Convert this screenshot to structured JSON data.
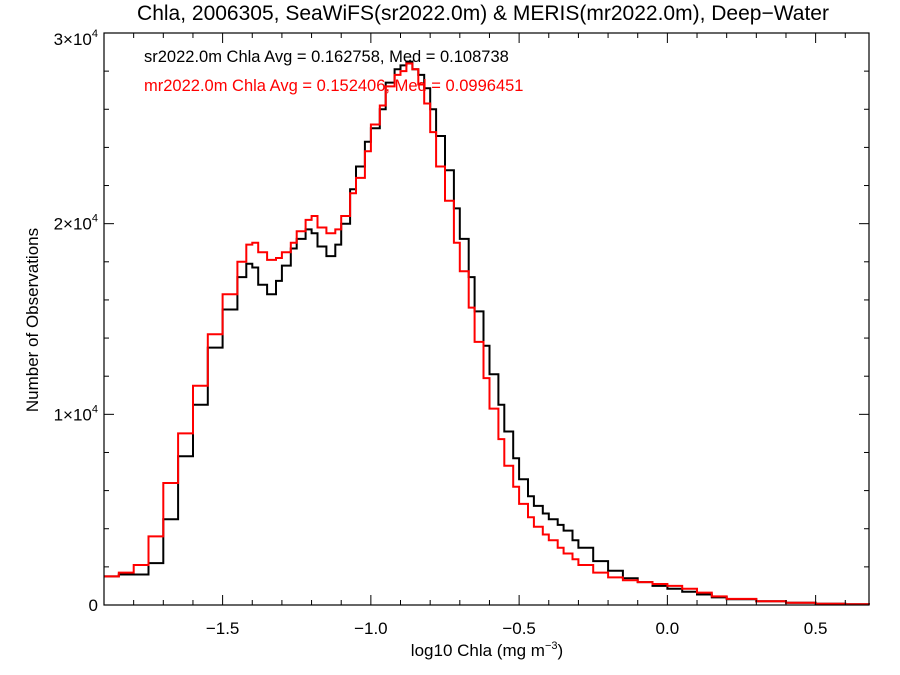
{
  "chart_data": {
    "type": "line",
    "title": "Chla, 2006305, SeaWiFS(sr2022.0m) & MERIS(mr2022.0m), Deep−Water",
    "xlabel": "log10 Chla (mg m⁻³)",
    "ylabel": "Number of Observations",
    "xlim": [
      -1.9,
      0.68
    ],
    "ylim": [
      0,
      30000
    ],
    "x_ticks": [
      -1.5,
      -1.0,
      -0.5,
      0.0,
      0.5
    ],
    "x_tick_labels": [
      "−1.5",
      "−1.0",
      "−0.5",
      "0.0",
      "0.5"
    ],
    "y_ticks": [
      0,
      10000,
      20000,
      30000
    ],
    "y_tick_labels": [
      {
        "mantissa": "0",
        "exponent": ""
      },
      {
        "mantissa": "1×10",
        "exponent": "4"
      },
      {
        "mantissa": "2×10",
        "exponent": "4"
      },
      {
        "mantissa": "3×10",
        "exponent": "4"
      }
    ],
    "annotations": [
      "sr2022.0m Chla Avg = 0.162758, Med = 0.108738",
      "mr2022.0m Chla Avg = 0.152406, Med = 0.0996451"
    ],
    "series": [
      {
        "color": "#000000",
        "x": [
          -1.9,
          -1.85,
          -1.8,
          -1.75,
          -1.7,
          -1.65,
          -1.6,
          -1.55,
          -1.5,
          -1.45,
          -1.42,
          -1.4,
          -1.38,
          -1.35,
          -1.32,
          -1.3,
          -1.27,
          -1.25,
          -1.22,
          -1.2,
          -1.18,
          -1.15,
          -1.12,
          -1.1,
          -1.07,
          -1.05,
          -1.02,
          -1.0,
          -0.97,
          -0.95,
          -0.92,
          -0.9,
          -0.88,
          -0.86,
          -0.84,
          -0.82,
          -0.8,
          -0.78,
          -0.75,
          -0.72,
          -0.7,
          -0.67,
          -0.65,
          -0.62,
          -0.6,
          -0.57,
          -0.55,
          -0.52,
          -0.5,
          -0.47,
          -0.45,
          -0.42,
          -0.4,
          -0.37,
          -0.35,
          -0.32,
          -0.3,
          -0.25,
          -0.2,
          -0.15,
          -0.1,
          -0.05,
          0.0,
          0.05,
          0.1,
          0.15,
          0.2,
          0.3,
          0.4,
          0.5,
          0.6,
          0.68
        ],
        "values": [
          1500,
          1600,
          1600,
          2200,
          4500,
          7800,
          10500,
          13500,
          15500,
          17200,
          17900,
          17700,
          16800,
          16300,
          17000,
          17800,
          18700,
          19200,
          19700,
          19500,
          18800,
          18300,
          18900,
          20000,
          21800,
          23000,
          24300,
          25000,
          26000,
          27400,
          28100,
          28300,
          28500,
          28100,
          27800,
          27100,
          26000,
          24600,
          22800,
          20800,
          19200,
          17200,
          15400,
          13600,
          12100,
          10500,
          9100,
          7700,
          6600,
          5700,
          5200,
          4800,
          4500,
          4200,
          3900,
          3400,
          3000,
          2300,
          1800,
          1400,
          1200,
          1000,
          850,
          700,
          550,
          400,
          300,
          200,
          120,
          70,
          40,
          20
        ]
      },
      {
        "color": "#ff0000",
        "x": [
          -1.9,
          -1.85,
          -1.8,
          -1.75,
          -1.7,
          -1.65,
          -1.6,
          -1.55,
          -1.5,
          -1.45,
          -1.42,
          -1.4,
          -1.38,
          -1.35,
          -1.32,
          -1.3,
          -1.27,
          -1.25,
          -1.22,
          -1.2,
          -1.18,
          -1.15,
          -1.12,
          -1.1,
          -1.07,
          -1.05,
          -1.02,
          -1.0,
          -0.97,
          -0.95,
          -0.92,
          -0.9,
          -0.88,
          -0.86,
          -0.84,
          -0.82,
          -0.8,
          -0.78,
          -0.75,
          -0.72,
          -0.7,
          -0.67,
          -0.65,
          -0.62,
          -0.6,
          -0.57,
          -0.55,
          -0.52,
          -0.5,
          -0.47,
          -0.45,
          -0.42,
          -0.4,
          -0.37,
          -0.35,
          -0.32,
          -0.3,
          -0.25,
          -0.2,
          -0.15,
          -0.1,
          -0.05,
          0.0,
          0.05,
          0.1,
          0.15,
          0.2,
          0.3,
          0.4,
          0.5,
          0.6,
          0.68
        ],
        "values": [
          1500,
          1700,
          2100,
          3600,
          6400,
          9000,
          11500,
          14200,
          16300,
          18000,
          18900,
          19000,
          18500,
          18100,
          18200,
          18500,
          19000,
          19600,
          20200,
          20400,
          19800,
          19500,
          19700,
          20400,
          21600,
          22400,
          23800,
          25200,
          26200,
          27200,
          27800,
          28000,
          28400,
          28100,
          27300,
          26300,
          24800,
          23000,
          21200,
          19000,
          17500,
          15600,
          13800,
          11900,
          10300,
          8700,
          7300,
          6200,
          5300,
          4600,
          4100,
          3700,
          3400,
          3000,
          2700,
          2400,
          2100,
          1700,
          1450,
          1300,
          1200,
          1100,
          1000,
          850,
          650,
          450,
          320,
          200,
          120,
          70,
          40,
          20
        ]
      }
    ]
  }
}
